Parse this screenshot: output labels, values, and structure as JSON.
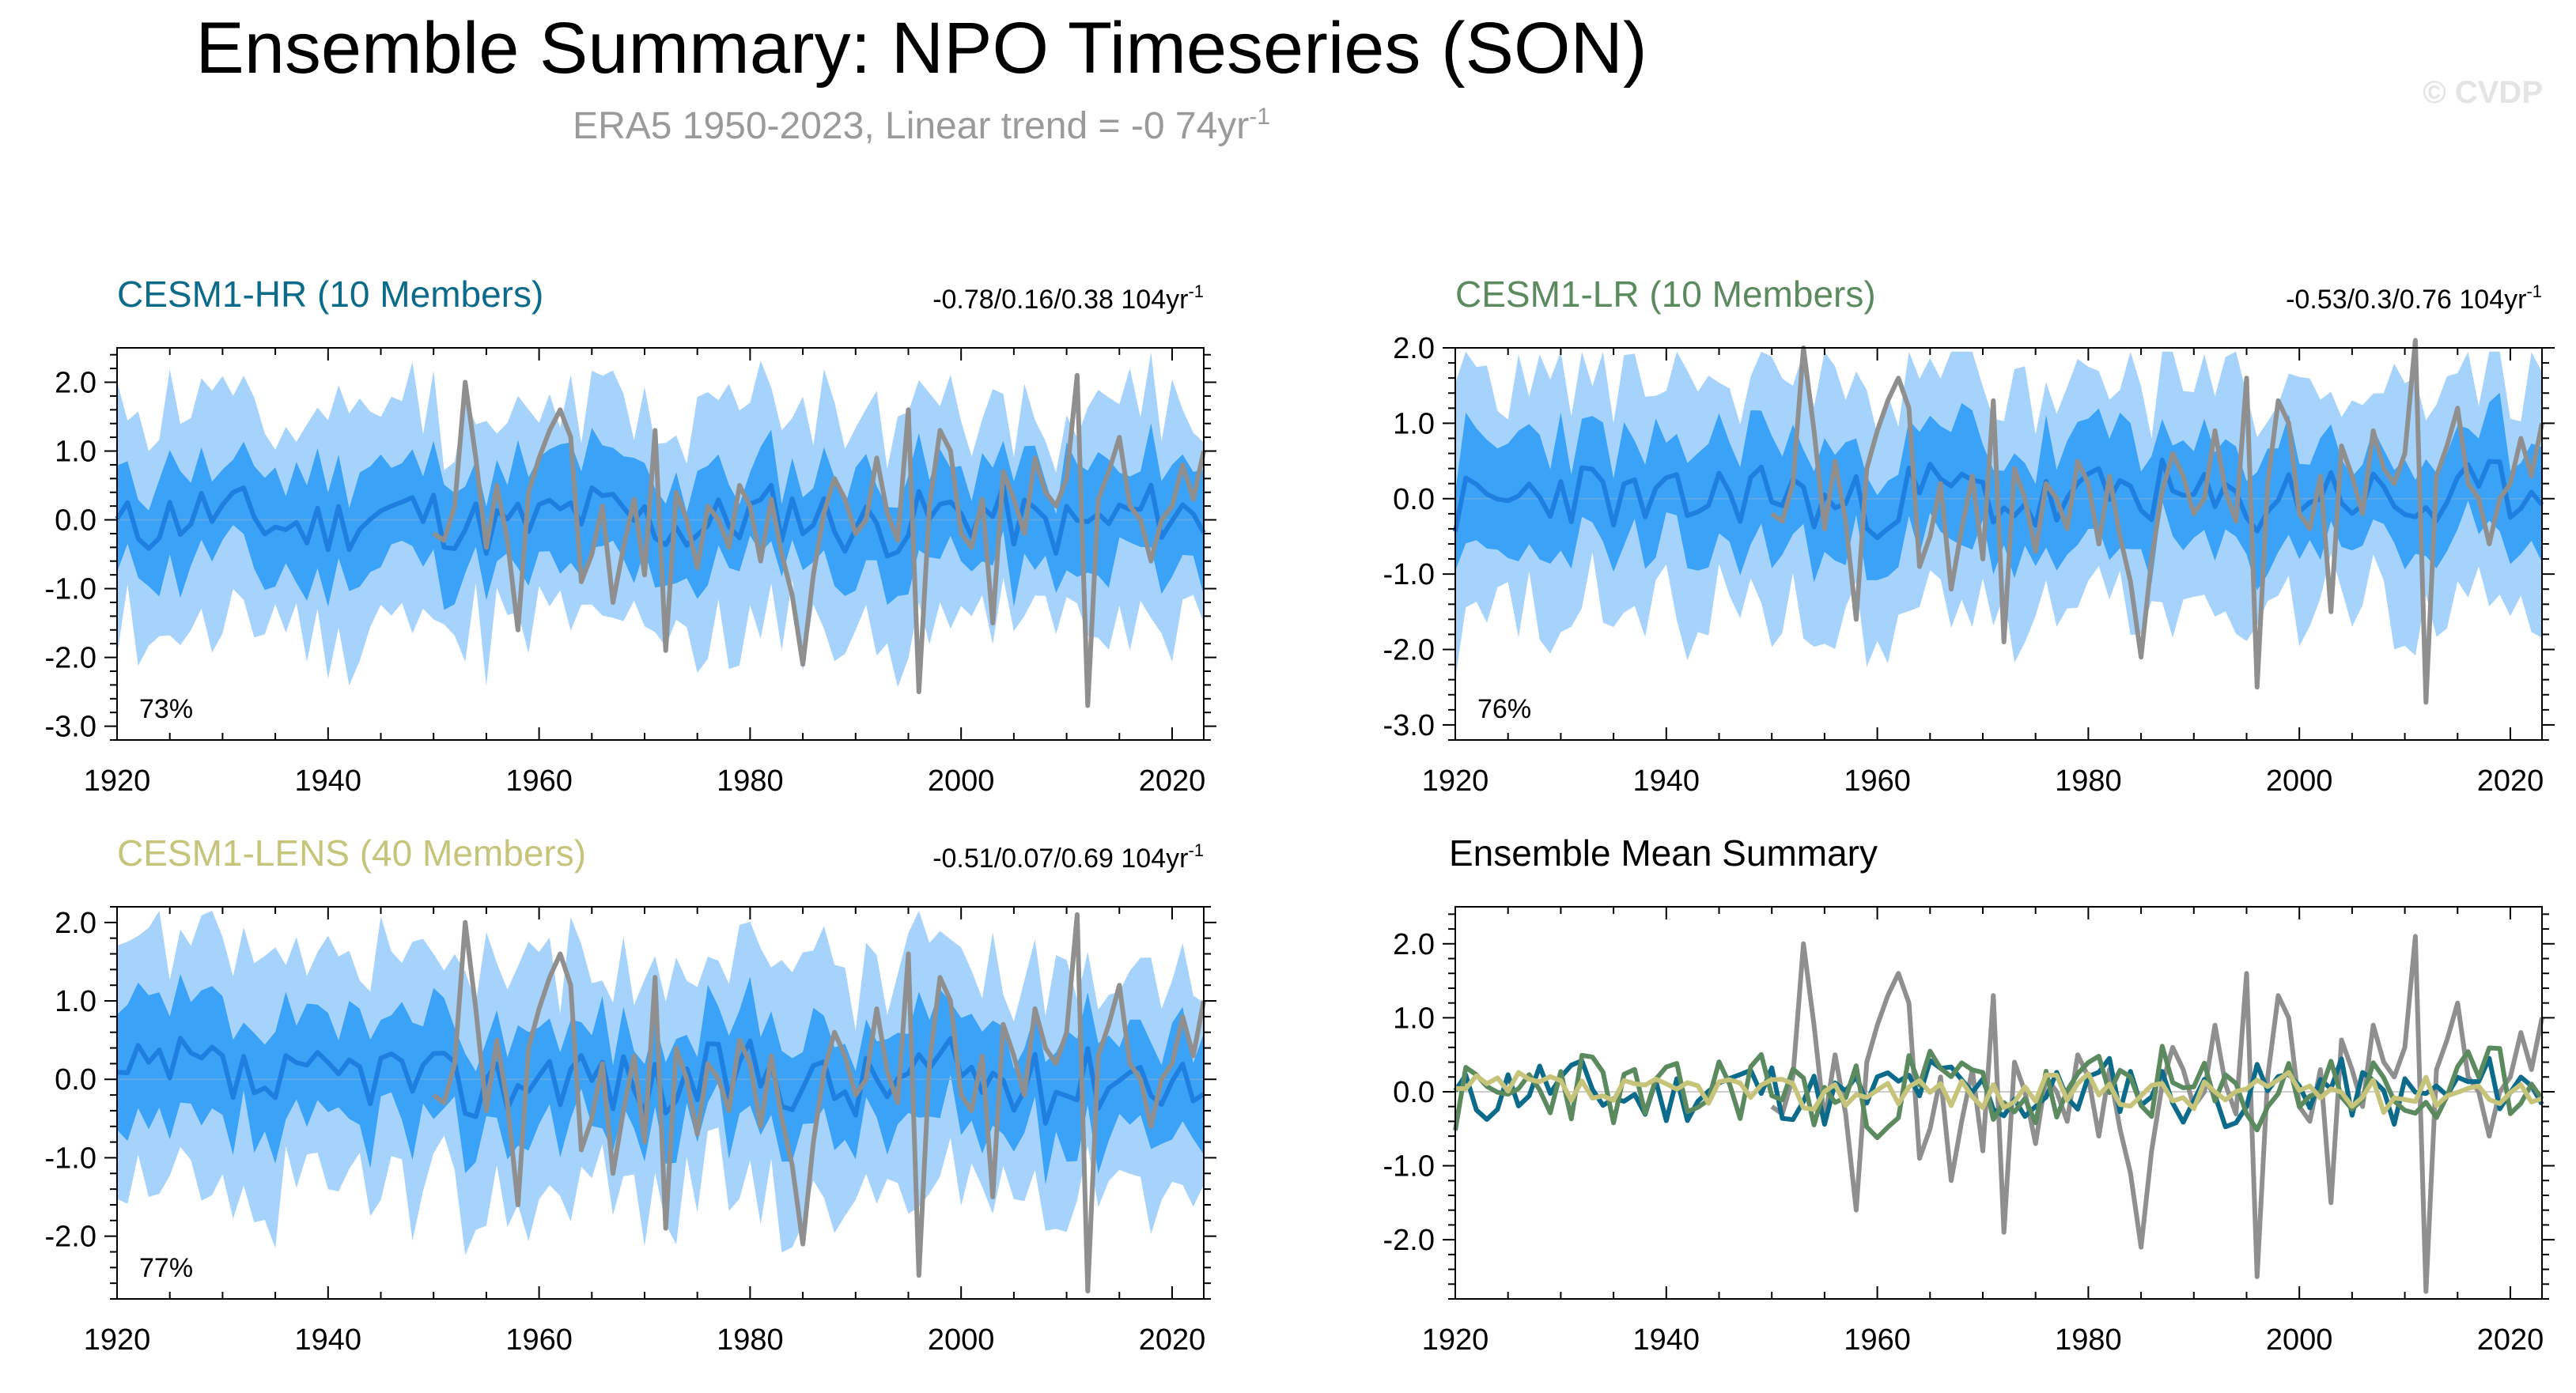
{
  "title": "Ensemble Summary: NPO Timeseries (SON)",
  "subtitle": "ERA5 1950-2023, Linear trend = -0 74yr",
  "subtitle_sup": "-1",
  "watermark": "© CVDP",
  "colors": {
    "band_outer": "#a6d3fb",
    "band_inner": "#3aa3f7",
    "ens_mean_line": "#1f7fe0",
    "obs_line": "#8f8f8f",
    "hr": "#0c6b8a",
    "lr": "#5a8a5e",
    "lens": "#c6c47a",
    "text": "#000000",
    "grey_text": "#9a9a9a"
  },
  "chart_data": [
    {
      "id": "hr",
      "type": "area",
      "title": "CESM1-HR (10 Members)",
      "title_color": "#0c6b8a",
      "trend_label": "-0.78/0.16/0.38 104yr",
      "trend_sup": "-1",
      "percent_label": "73%",
      "xlim": [
        1920,
        2023
      ],
      "ylim": [
        -3.2,
        2.5
      ],
      "xticks": [
        1920,
        1940,
        1960,
        1980,
        2000,
        2020
      ],
      "yticks": [
        2.0,
        1.0,
        0.0,
        -1.0,
        -2.0,
        -3.0
      ],
      "ytick_labels": [
        "2.0",
        "1.0",
        "0.0",
        "-1.0",
        "-2.0",
        "-3.0"
      ],
      "member_spread": 0.7,
      "extreme_spread": 1.55,
      "seed": 11
    },
    {
      "id": "lr",
      "type": "area",
      "title": "CESM1-LR (10 Members)",
      "title_color": "#5a8a5e",
      "trend_label": "-0.53/0.3/0.76 104yr",
      "trend_sup": "-1",
      "percent_label": "76%",
      "xlim": [
        1920,
        2023
      ],
      "ylim": [
        -3.2,
        2.0
      ],
      "xticks": [
        1920,
        1940,
        1960,
        1980,
        2000,
        2020
      ],
      "yticks": [
        2.0,
        1.0,
        0.0,
        -1.0,
        -2.0,
        -3.0
      ],
      "ytick_labels": [
        "2.0",
        "1.0",
        "0.0",
        "-1.0",
        "-2.0",
        "-3.0"
      ],
      "member_spread": 0.7,
      "extreme_spread": 1.5,
      "seed": 23
    },
    {
      "id": "lens",
      "type": "area",
      "title": "CESM1-LENS (40 Members)",
      "title_color": "#c6c47a",
      "trend_label": "-0.51/0.07/0.69 104yr",
      "trend_sup": "-1",
      "percent_label": "77%",
      "xlim": [
        1920,
        2023
      ],
      "ylim": [
        -2.8,
        2.2
      ],
      "xticks": [
        1920,
        1940,
        1960,
        1980,
        2000,
        2020
      ],
      "yticks": [
        2.0,
        1.0,
        0.0,
        -1.0,
        -2.0
      ],
      "ytick_labels": [
        "2.0",
        "1.0",
        "0.0",
        "-1.0",
        "-2.0"
      ],
      "member_spread": 0.65,
      "extreme_spread": 1.45,
      "seed": 37
    },
    {
      "id": "summary",
      "type": "line",
      "title": "Ensemble Mean Summary",
      "title_color": "#000000",
      "xlim": [
        1920,
        2023
      ],
      "ylim": [
        -2.8,
        2.5
      ],
      "xticks": [
        1920,
        1940,
        1960,
        1980,
        2000,
        2020
      ],
      "yticks": [
        2.0,
        1.0,
        0.0,
        -1.0,
        -2.0
      ],
      "ytick_labels": [
        "2.0",
        "1.0",
        "0.0",
        "-1.0",
        "-2.0"
      ],
      "series": [
        {
          "name": "ERA5",
          "color": "#8f8f8f"
        },
        {
          "name": "CESM1-HR",
          "color": "#0c6b8a"
        },
        {
          "name": "CESM1-LR",
          "color": "#5a8a5e"
        },
        {
          "name": "CESM1-LENS",
          "color": "#c6c47a"
        }
      ]
    }
  ],
  "obs_series": {
    "name": "ERA5",
    "years": [
      1950,
      1951,
      1952,
      1953,
      1954,
      1955,
      1956,
      1957,
      1958,
      1959,
      1960,
      1961,
      1962,
      1963,
      1964,
      1965,
      1966,
      1967,
      1968,
      1969,
      1970,
      1971,
      1972,
      1973,
      1974,
      1975,
      1976,
      1977,
      1978,
      1979,
      1980,
      1981,
      1982,
      1983,
      1984,
      1985,
      1986,
      1987,
      1988,
      1989,
      1990,
      1991,
      1992,
      1993,
      1994,
      1995,
      1996,
      1997,
      1998,
      1999,
      2000,
      2001,
      2002,
      2003,
      2004,
      2005,
      2006,
      2007,
      2008,
      2009,
      2010,
      2011,
      2012,
      2013,
      2014,
      2015,
      2016,
      2017,
      2018,
      2019,
      2020,
      2021,
      2022,
      2023
    ],
    "values": [
      -0.2,
      -0.3,
      0.2,
      2.0,
      0.9,
      -0.4,
      0.5,
      -0.3,
      -1.6,
      0.4,
      0.9,
      1.3,
      1.6,
      1.2,
      -0.9,
      -0.5,
      0.2,
      -1.2,
      -0.4,
      0.3,
      -0.8,
      1.3,
      -1.9,
      0.4,
      0.0,
      -0.7,
      0.2,
      0.0,
      -0.4,
      0.5,
      0.2,
      -0.6,
      0.3,
      -0.5,
      -1.1,
      -2.1,
      -0.8,
      0.1,
      0.6,
      0.3,
      -0.2,
      0.0,
      0.9,
      0.1,
      -0.3,
      1.6,
      -2.5,
      0.2,
      1.3,
      1.0,
      -0.2,
      -0.4,
      0.3,
      -1.5,
      0.7,
      0.3,
      -0.2,
      0.9,
      0.4,
      0.2,
      0.6,
      2.1,
      -2.7,
      0.3,
      0.7,
      1.2,
      0.2,
      0.0,
      -0.6,
      0.0,
      0.2,
      0.8,
      0.3,
      1.0
    ]
  }
}
